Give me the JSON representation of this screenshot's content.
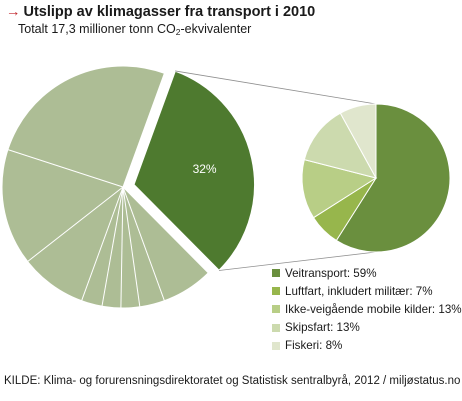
{
  "header": {
    "title": "Utslipp av klimagasser fra transport i 2010",
    "subtitle_pre": "Totalt 17,3 millioner tonn CO",
    "subtitle_sub": "2",
    "subtitle_post": "-ekvivalenter"
  },
  "colors": {
    "arrow": "#c0272d",
    "outer_pie": "#adbd95",
    "exploded_slice": "#4e7a2f",
    "connector": "#909090"
  },
  "chart_data": [
    {
      "type": "pie",
      "title": "",
      "slices": [
        {
          "label": "",
          "value": 32,
          "highlighted": true,
          "data_label": "32%"
        },
        {
          "label": "",
          "value": 68
        }
      ]
    },
    {
      "type": "pie",
      "title": "",
      "slices": [
        {
          "label": "Veitransport: 59%",
          "value": 59,
          "color": "#6a8f3e"
        },
        {
          "label": "Luftfart, inkludert militær: 7%",
          "value": 7,
          "color": "#97b64c"
        },
        {
          "label": "Ikke-veigående mobile kilder: 13%",
          "value": 13,
          "color": "#b8ce86"
        },
        {
          "label": "Skipsfart: 13%",
          "value": 13,
          "color": "#ccdaae"
        },
        {
          "label": "Fiskeri: 8%",
          "value": 8,
          "color": "#e0e6cd"
        }
      ],
      "legend_position": "bottom-right"
    }
  ],
  "source": "KILDE: Klima- og forurensningsdirektoratet og Statistisk sentralbyrå, 2012 / miljøstatus.no"
}
